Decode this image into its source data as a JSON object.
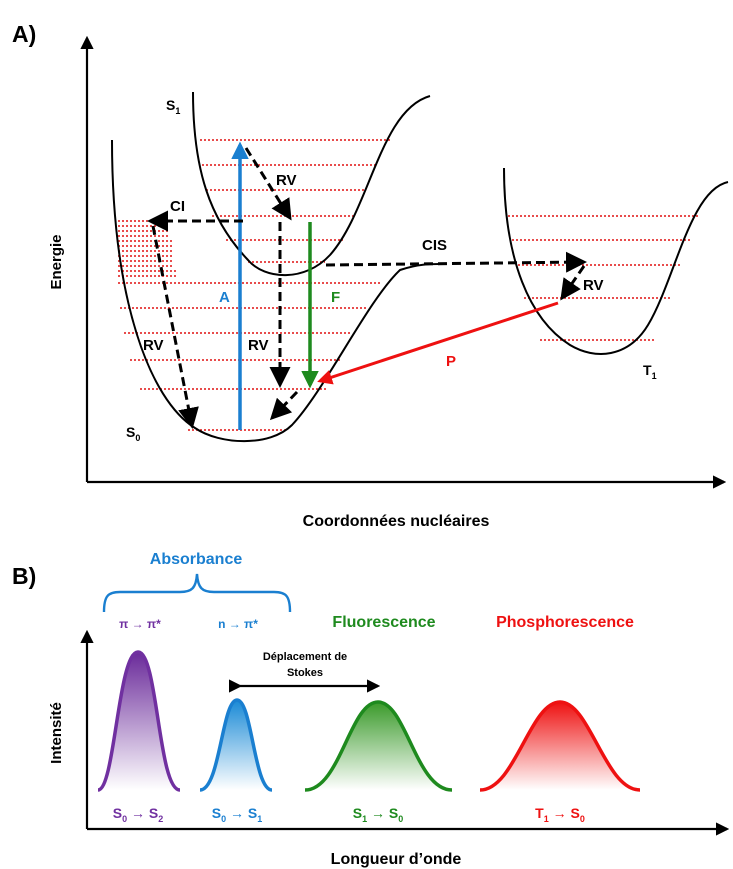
{
  "panel_a": {
    "label": "A)",
    "y_axis_label": "Energie",
    "x_axis_label": "Coordonnées nucléaires",
    "states": {
      "s1": "S",
      "s1_sub": "1",
      "s0": "S",
      "s0_sub": "0",
      "t1": "T",
      "t1_sub": "1"
    },
    "transitions": {
      "absorption": "A",
      "fluorescence": "F",
      "phosphorescence": "P",
      "internal_conversion": "CI",
      "intersystem_crossing": "CIS",
      "vib_relax_s1": "RV",
      "vib_relax_s0_left": "RV",
      "vib_relax_s0_mid": "RV",
      "vib_relax_t1": "RV"
    }
  },
  "panel_b": {
    "label": "B)",
    "y_axis_label": "Intensité",
    "x_axis_label": "Longueur d’onde",
    "absorbance_title": "Absorbance",
    "pi_pi_star": "π → π*",
    "n_pi_star": "n → π*",
    "fluorescence_title": "Fluorescence",
    "phosphorescence_title": "Phosphorescence",
    "stokes_line1": "Déplacement de",
    "stokes_line2": "Stokes",
    "bands": [
      {
        "main": "S",
        "sub1": "0",
        "arrow": " → S",
        "sub2": "2"
      },
      {
        "main": "S",
        "sub1": "0",
        "arrow": " → S",
        "sub2": "1"
      },
      {
        "main": "S",
        "sub1": "1",
        "arrow": " → S",
        "sub2": "0"
      },
      {
        "main": "T",
        "sub1": "1",
        "arrow": " → S",
        "sub2": "0"
      }
    ]
  },
  "colors": {
    "absorption": "#1a7fd0",
    "fluorescence": "#1e8a1e",
    "phosphorescence": "#ee1111",
    "purple": "#7030a0",
    "vibrational_levels": "#e01010"
  }
}
